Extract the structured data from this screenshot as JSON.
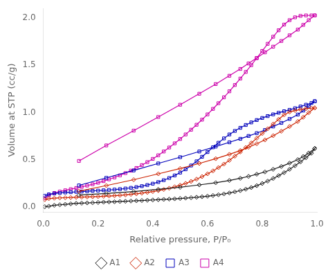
{
  "chart_data": {
    "type": "line",
    "x_label": "Relative pressure, P/P₀",
    "y_label": "Volume at STP (cc/g)",
    "xlim": [
      0.0,
      1.0
    ],
    "ylim": [
      -0.05,
      2.1
    ],
    "xticks": [
      {
        "value": 0.0,
        "label": "0.0"
      },
      0.2,
      0.4,
      0.6,
      0.8,
      {
        "value": 1.0,
        "label": "1.0"
      }
    ],
    "yticks": [
      {
        "value": 0.0,
        "label": "0.0"
      },
      0.5,
      {
        "value": 1.0,
        "label": "1.0"
      },
      1.5,
      {
        "value": 2.0,
        "label": "2.0"
      }
    ],
    "grid": false,
    "legend": "bottom",
    "x": [
      0.005,
      0.02,
      0.04,
      0.06,
      0.08,
      0.1,
      0.12,
      0.14,
      0.16,
      0.18,
      0.2,
      0.22,
      0.24,
      0.26,
      0.28,
      0.3,
      0.32,
      0.34,
      0.36,
      0.38,
      0.4,
      0.42,
      0.44,
      0.46,
      0.48,
      0.5,
      0.52,
      0.54,
      0.56,
      0.58,
      0.6,
      0.62,
      0.64,
      0.66,
      0.68,
      0.7,
      0.72,
      0.74,
      0.76,
      0.78,
      0.8,
      0.82,
      0.84,
      0.86,
      0.88,
      0.9,
      0.92,
      0.94,
      0.96,
      0.98,
      0.992,
      0.992,
      0.97,
      0.95,
      0.93,
      0.9,
      0.87,
      0.84,
      0.81,
      0.78,
      0.75,
      0.72,
      0.68,
      0.63,
      0.57,
      0.5,
      0.42,
      0.33,
      0.23,
      0.13
    ],
    "series": [
      {
        "name": "A1",
        "color": "#1a1a1a",
        "marker": "diamond",
        "values": [
          0.005,
          0.01,
          0.02,
          0.025,
          0.03,
          0.035,
          0.04,
          0.042,
          0.045,
          0.047,
          0.05,
          0.053,
          0.055,
          0.057,
          0.06,
          0.062,
          0.065,
          0.068,
          0.07,
          0.073,
          0.076,
          0.079,
          0.082,
          0.085,
          0.088,
          0.092,
          0.096,
          0.1,
          0.105,
          0.11,
          0.116,
          0.123,
          0.131,
          0.14,
          0.15,
          0.162,
          0.175,
          0.19,
          0.207,
          0.227,
          0.25,
          0.275,
          0.303,
          0.333,
          0.365,
          0.4,
          0.438,
          0.478,
          0.522,
          0.57,
          0.62,
          0.62,
          0.572,
          0.535,
          0.502,
          0.465,
          0.43,
          0.4,
          0.372,
          0.348,
          0.325,
          0.305,
          0.282,
          0.258,
          0.235,
          0.21,
          0.188,
          0.165,
          0.145,
          0.128
        ]
      },
      {
        "name": "A2",
        "color": "#cc2200",
        "marker": "diamond",
        "values": [
          0.08,
          0.09,
          0.095,
          0.098,
          0.1,
          0.102,
          0.104,
          0.106,
          0.108,
          0.11,
          0.112,
          0.115,
          0.118,
          0.121,
          0.125,
          0.13,
          0.135,
          0.141,
          0.148,
          0.156,
          0.165,
          0.175,
          0.187,
          0.2,
          0.215,
          0.232,
          0.251,
          0.272,
          0.296,
          0.323,
          0.352,
          0.383,
          0.418,
          0.455,
          0.495,
          0.538,
          0.583,
          0.63,
          0.678,
          0.728,
          0.778,
          0.828,
          0.878,
          0.928,
          0.975,
          1.005,
          1.02,
          1.032,
          1.04,
          1.045,
          1.048,
          1.048,
          0.998,
          0.95,
          0.905,
          0.852,
          0.802,
          0.755,
          0.71,
          0.67,
          0.633,
          0.598,
          0.558,
          0.512,
          0.462,
          0.408,
          0.352,
          0.29,
          0.228,
          0.168
        ]
      },
      {
        "name": "A3",
        "color": "#0000bb",
        "marker": "square",
        "values": [
          0.12,
          0.135,
          0.145,
          0.15,
          0.155,
          0.158,
          0.162,
          0.165,
          0.168,
          0.172,
          0.175,
          0.178,
          0.182,
          0.186,
          0.191,
          0.197,
          0.204,
          0.212,
          0.222,
          0.234,
          0.248,
          0.265,
          0.285,
          0.308,
          0.335,
          0.365,
          0.4,
          0.44,
          0.484,
          0.532,
          0.582,
          0.632,
          0.68,
          0.726,
          0.768,
          0.805,
          0.838,
          0.868,
          0.895,
          0.92,
          0.942,
          0.962,
          0.98,
          0.997,
          1.013,
          1.028,
          1.045,
          1.063,
          1.082,
          1.1,
          1.118,
          1.118,
          1.068,
          1.02,
          0.978,
          0.932,
          0.89,
          0.852,
          0.815,
          0.782,
          0.752,
          0.722,
          0.685,
          0.64,
          0.588,
          0.528,
          0.462,
          0.388,
          0.31,
          0.23
        ]
      },
      {
        "name": "A4",
        "color": "#cc00aa",
        "marker": "square",
        "values": [
          0.095,
          0.125,
          0.15,
          0.165,
          0.178,
          0.19,
          0.202,
          0.214,
          0.228,
          0.242,
          0.258,
          0.275,
          0.294,
          0.314,
          0.336,
          0.36,
          0.386,
          0.414,
          0.444,
          0.476,
          0.51,
          0.548,
          0.588,
          0.63,
          0.674,
          0.72,
          0.768,
          0.818,
          0.87,
          0.924,
          0.98,
          1.038,
          1.098,
          1.16,
          1.224,
          1.29,
          1.358,
          1.428,
          1.5,
          1.574,
          1.65,
          1.725,
          1.8,
          1.868,
          1.928,
          1.975,
          2.005,
          2.02,
          2.025,
          2.025,
          2.025,
          2.025,
          1.975,
          1.925,
          1.875,
          1.815,
          1.755,
          1.695,
          1.635,
          1.576,
          1.518,
          1.46,
          1.388,
          1.3,
          1.198,
          1.082,
          0.952,
          0.808,
          0.652,
          0.488
        ]
      }
    ]
  }
}
